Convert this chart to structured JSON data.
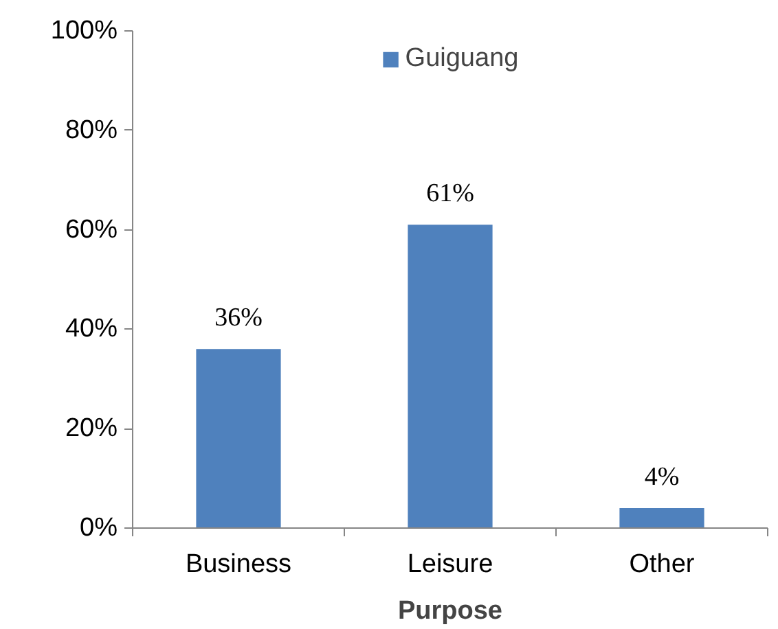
{
  "chart_data": {
    "type": "bar",
    "xlabel": "Purpose",
    "categories": [
      "Business",
      "Leisure",
      "Other"
    ],
    "series": [
      {
        "name": "Guiguang",
        "color": "#4f81bd",
        "values": [
          36,
          61,
          4
        ]
      }
    ],
    "ylim": [
      0,
      100
    ],
    "yticks": [
      {
        "value": 0,
        "label": "0%"
      },
      {
        "value": 20,
        "label": "20%"
      },
      {
        "value": 40,
        "label": "40%"
      },
      {
        "value": 60,
        "label": "60%"
      },
      {
        "value": 80,
        "label": "80%"
      },
      {
        "value": 100,
        "label": "100%"
      }
    ],
    "value_labels": [
      "36%",
      "61%",
      "4%"
    ],
    "legend": "top",
    "grid": false
  }
}
